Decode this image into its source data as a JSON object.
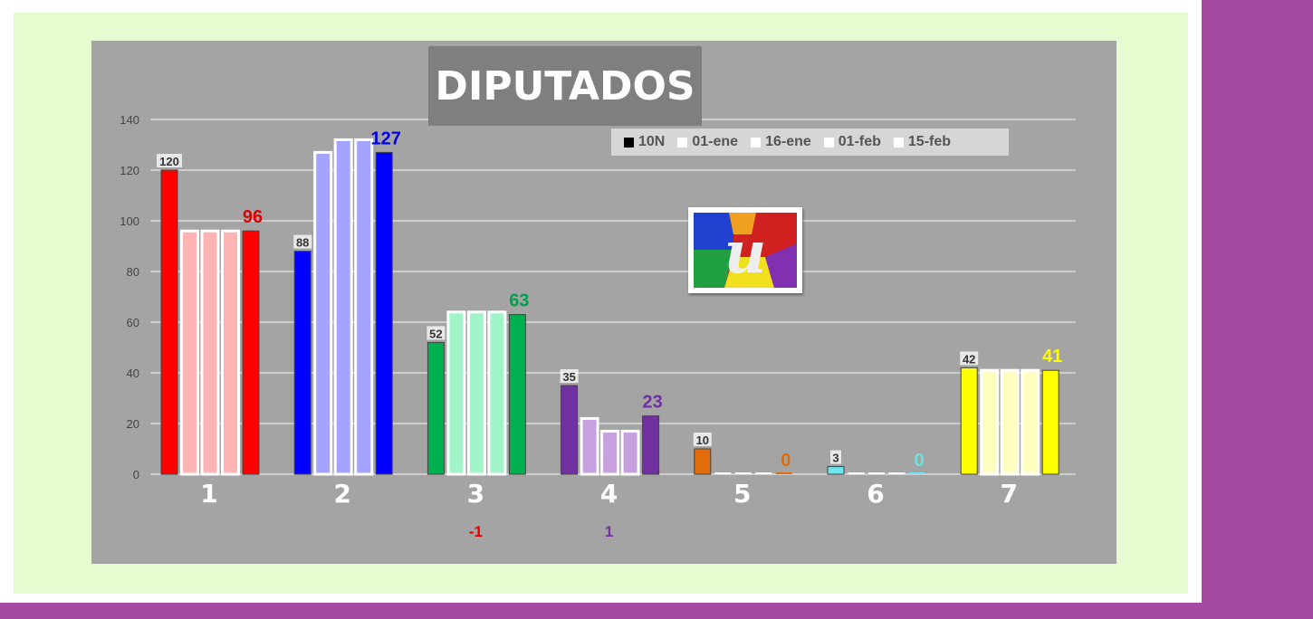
{
  "chart_data": {
    "type": "bar",
    "title": "DIPUTADOS",
    "categories": [
      "1",
      "2",
      "3",
      "4",
      "5",
      "6",
      "7"
    ],
    "series": [
      {
        "name": "10N",
        "values": [
          120,
          88,
          52,
          35,
          10,
          3,
          42
        ]
      },
      {
        "name": "01-ene",
        "values": [
          96,
          127,
          64,
          22,
          0,
          0,
          41
        ]
      },
      {
        "name": "16-ene",
        "values": [
          96,
          132,
          64,
          17,
          0,
          0,
          41
        ]
      },
      {
        "name": "01-feb",
        "values": [
          96,
          132,
          64,
          17,
          0,
          0,
          41
        ]
      },
      {
        "name": "15-feb",
        "values": [
          96,
          127,
          63,
          23,
          0,
          0,
          41
        ]
      }
    ],
    "ylim": [
      0,
      140
    ],
    "yticks": [
      0,
      20,
      40,
      60,
      80,
      100,
      120,
      140
    ],
    "grid": true,
    "legend_position": "top-right",
    "first_labels": [
      "120",
      "88",
      "52",
      "35",
      "10",
      "3",
      "42"
    ],
    "last_labels": [
      "96",
      "127",
      "63",
      "23",
      "0",
      "0",
      "41"
    ],
    "bottom_notes": [
      "",
      "",
      "-1",
      "1",
      "",
      "",
      ""
    ],
    "colors": {
      "main": [
        "#ff0000",
        "#0000ff",
        "#00b050",
        "#7030a0",
        "#e26b0a",
        "#6ee6ee",
        "#ffff00"
      ],
      "light": [
        "#ffb4b4",
        "#a4a4ff",
        "#a0f4c8",
        "#c8a0e0",
        "#ffffff",
        "#ffffff",
        "#ffffc0"
      ],
      "last_label": [
        "#e00000",
        "#0000e0",
        "#00a050",
        "#7030a0",
        "#e26b0a",
        "#70e0d8",
        "#ffff00"
      ],
      "bottom_note": [
        "",
        "",
        "#e00000",
        "#7030a0",
        "",
        "",
        ""
      ]
    }
  },
  "legend": {
    "items": [
      {
        "label": "10N",
        "color": "#000000"
      },
      {
        "label": "01-ene",
        "color": "#ffffff"
      },
      {
        "label": "16-ene",
        "color": "#ffffff"
      },
      {
        "label": "01-feb",
        "color": "#ffffff"
      },
      {
        "label": "15-feb",
        "color": "#ffffff"
      }
    ]
  }
}
